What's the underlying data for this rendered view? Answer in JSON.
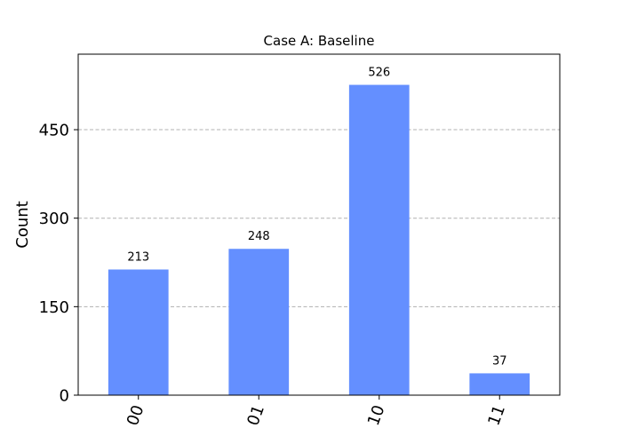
{
  "chart_data": {
    "type": "bar",
    "title": "Case A: Baseline",
    "xlabel": "",
    "ylabel": "Count",
    "categories": [
      "00",
      "01",
      "10",
      "11"
    ],
    "values": [
      213,
      248,
      526,
      37
    ],
    "data_labels": [
      "213",
      "248",
      "526",
      "37"
    ],
    "ylim": [
      0,
      578
    ],
    "yticks": [
      0,
      150,
      300,
      450
    ],
    "ytick_labels": [
      "0",
      "150",
      "300",
      "450"
    ],
    "grid": "horizontal-dashed",
    "legend": "none",
    "x_tick_rotation_deg": 70,
    "bar_color": "#648fff"
  }
}
